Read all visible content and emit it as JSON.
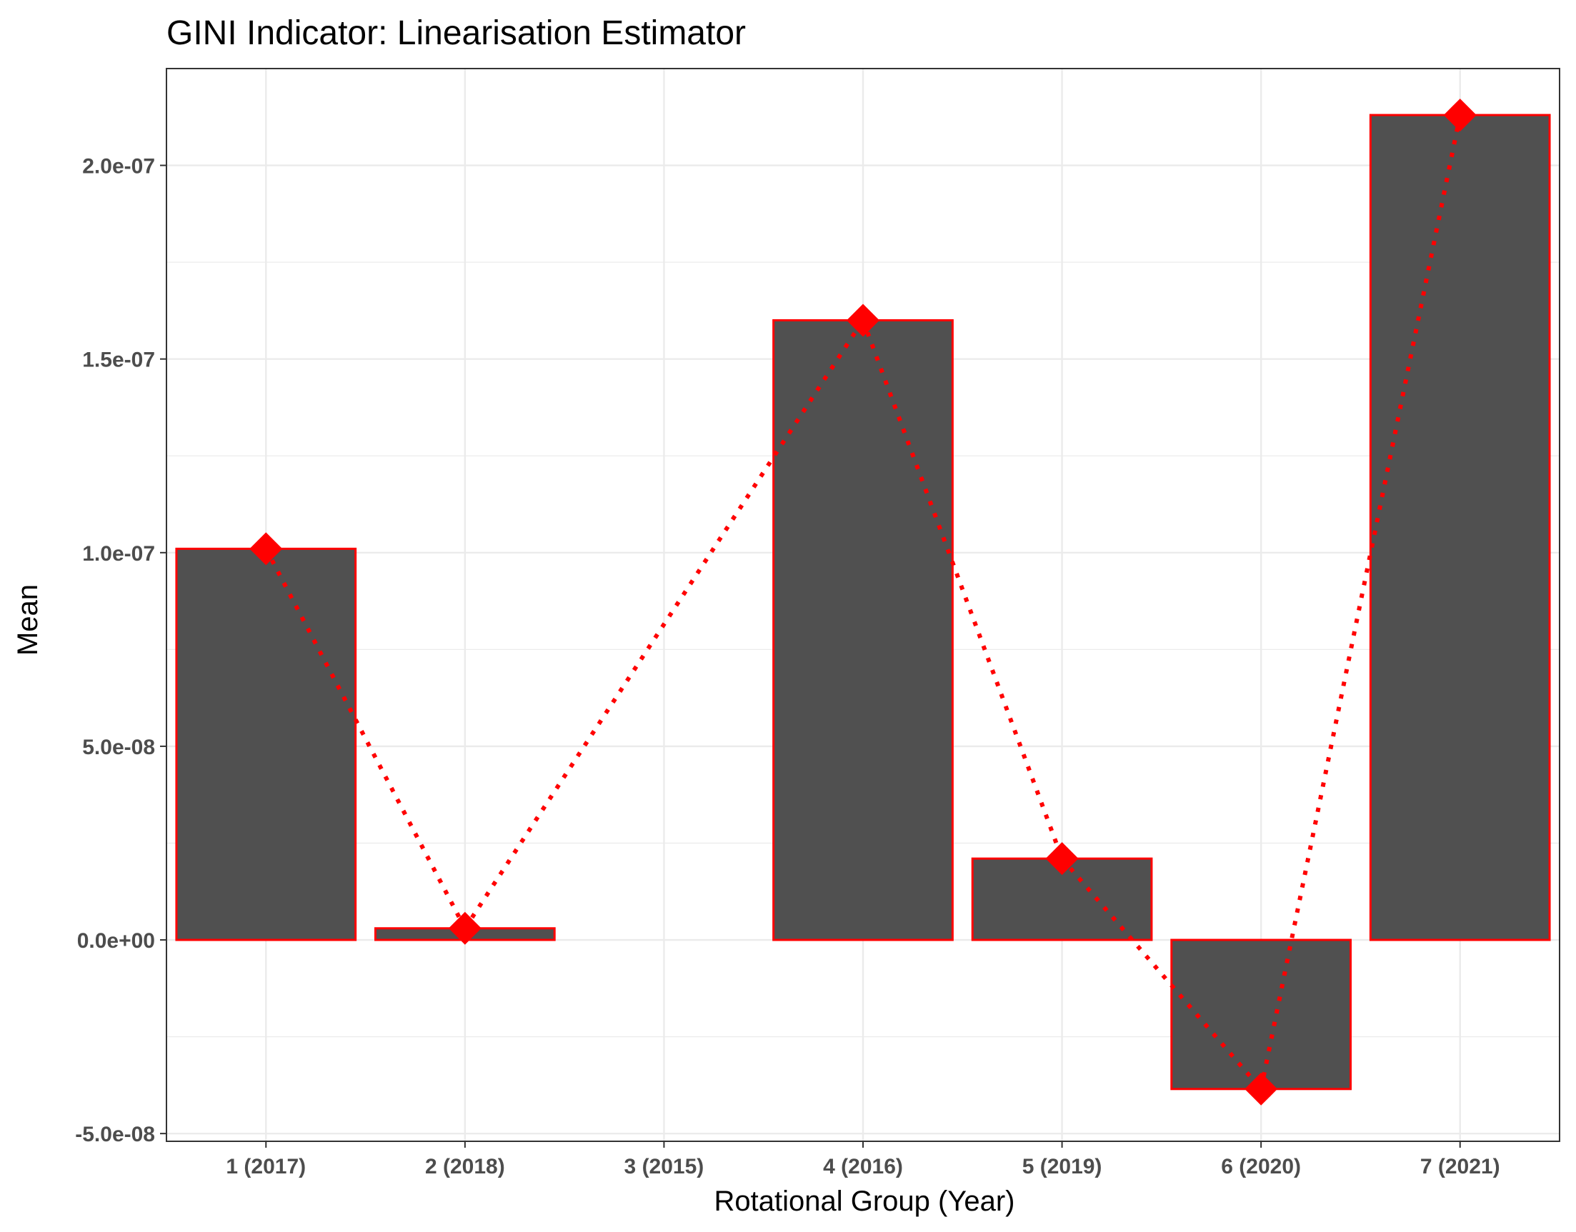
{
  "chart_data": {
    "type": "bar",
    "title": "GINI Indicator: Linearisation Estimator",
    "xlabel": "Rotational Group (Year)",
    "ylabel": "Mean",
    "categories": [
      "1 (2017)",
      "2 (2018)",
      "3 (2015)",
      "4 (2016)",
      "5 (2019)",
      "6 (2020)",
      "7 (2021)"
    ],
    "values": [
      1.01e-07,
      3e-09,
      null,
      1.6e-07,
      2.1e-08,
      -3.85e-08,
      2.13e-07
    ],
    "ylim": [
      -5.2e-08,
      2.25e-07
    ],
    "yticks": [
      -5e-08,
      0,
      5e-08,
      1e-07,
      1.5e-07,
      2e-07
    ],
    "ytick_labels": [
      "-5.0e-08",
      "0.0e+00",
      "5.0e-08",
      "1.0e-07",
      "1.5e-07",
      "2.0e-07"
    ],
    "grid": true,
    "colors": {
      "bar_fill": "#4d4d4d",
      "bar_outline": "#ff0000",
      "marker": "#ff0000",
      "line": "#ff0000"
    },
    "markers": "diamond",
    "line_style": "dotted"
  }
}
